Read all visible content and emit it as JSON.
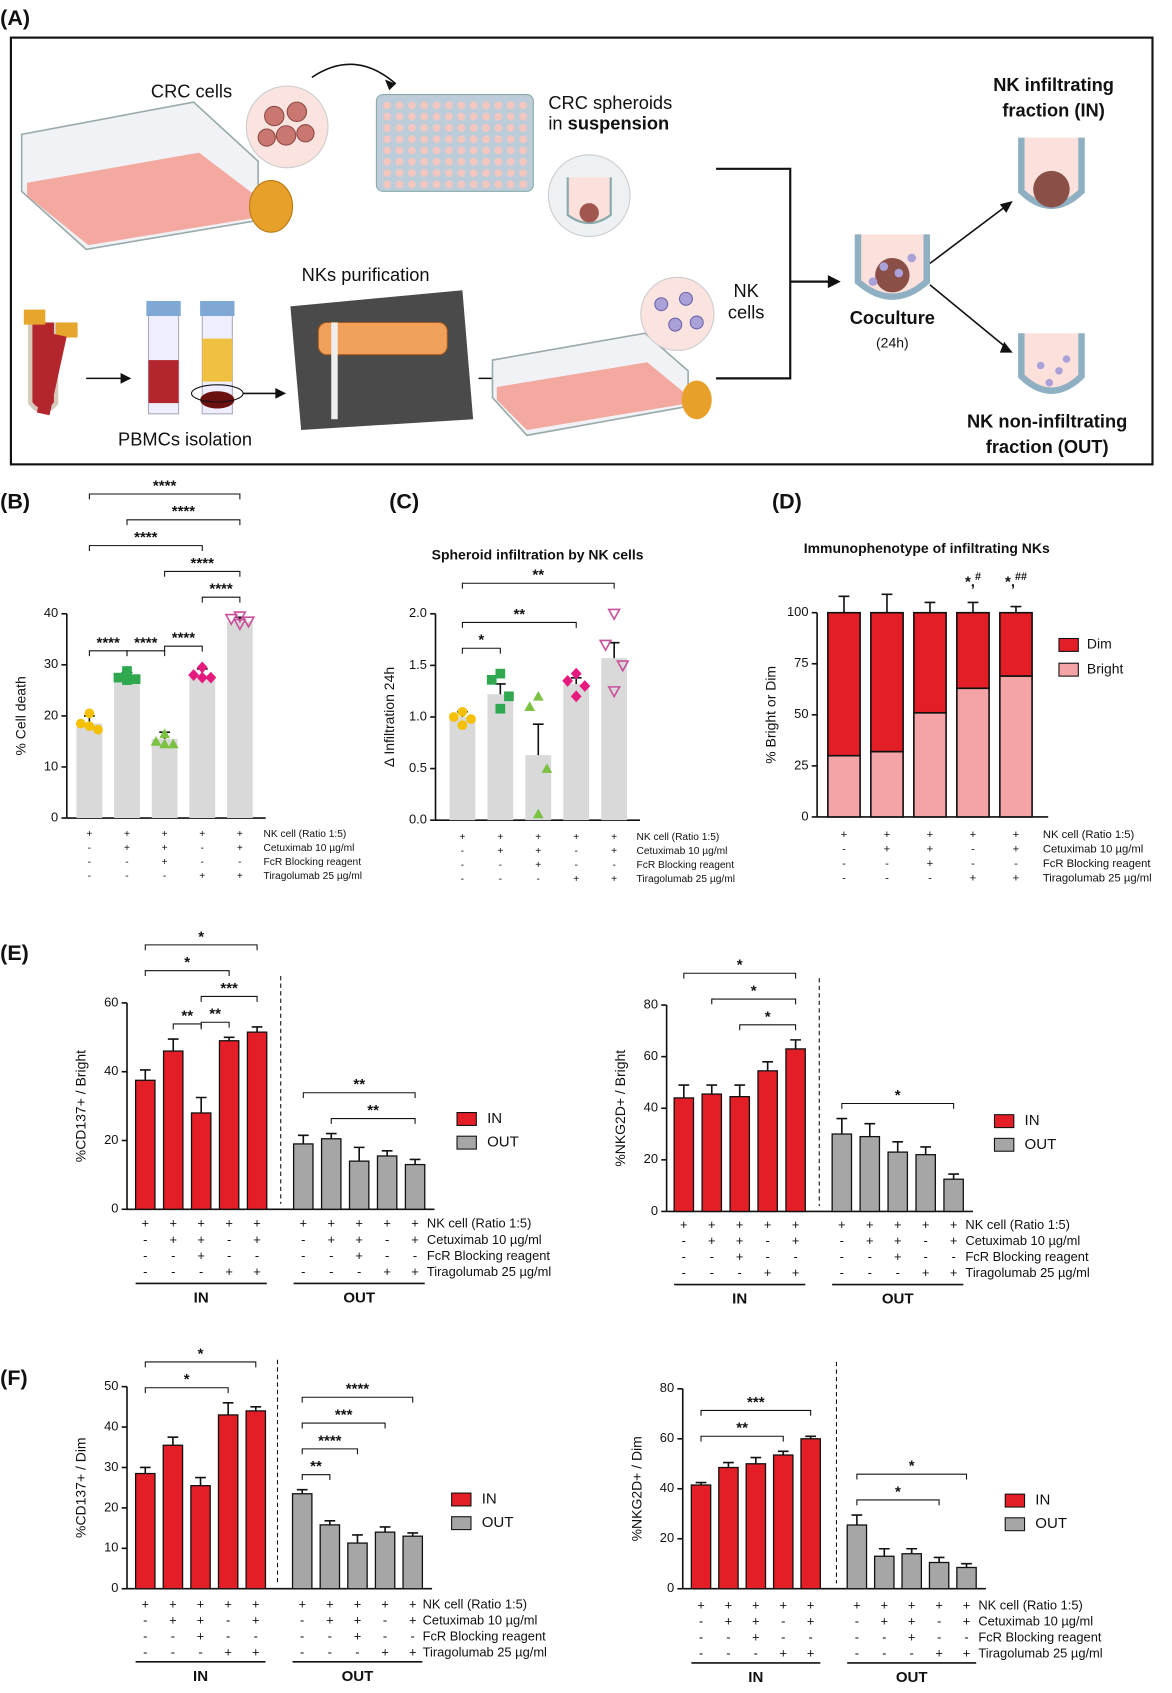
{
  "panel_labels": [
    "(A)",
    "(B)",
    "(C)",
    "(D)",
    "(E)",
    "(F)"
  ],
  "diagram": {
    "crc_cells": "CRC cells",
    "spheroids": "CRC spheroids",
    "in": "in ",
    "suspension": "suspension",
    "purification": "NKs purification",
    "nk": "NK",
    "cells": "cells",
    "pbmcs": "PBMCs isolation",
    "coculture": "Coculture",
    "time": "(24h)",
    "in_title_1": "NK infiltrating",
    "in_title_2": "fraction (IN)",
    "out_title_1": "NK non-infiltrating",
    "out_title_2": "fraction (OUT)"
  },
  "chart_data": [
    {
      "type": "bar",
      "ylabel": "% Cell death",
      "ylim": [
        0,
        40
      ],
      "yticks": [
        0,
        10,
        20,
        30,
        40
      ],
      "color": "#d9d9d9",
      "values": [
        18.5,
        27.5,
        15.5,
        28,
        38.5
      ],
      "errors": [
        1.5,
        1,
        1.3,
        1.2,
        0.8
      ],
      "points": [
        [
          20.5,
          18.5,
          17.3,
          18
        ],
        [
          28.8,
          27.5,
          27.2,
          27
        ],
        [
          16.5,
          15,
          14.5,
          14.5
        ],
        [
          29.5,
          28,
          27.5,
          27.5
        ],
        [
          39.5,
          39,
          38.5,
          38
        ]
      ],
      "point_colors": [
        "#f5c000",
        "#2fa84f",
        "#7cc242",
        "#e6197f",
        "#c8509a"
      ],
      "markers": [
        "circle",
        "square",
        "triangle",
        "diamond",
        "triangle-down-open"
      ],
      "conditions": [
        {
          "label": "NK cell (Ratio 1:5)",
          "signs": [
            "+",
            "+",
            "+",
            "+",
            "+"
          ]
        },
        {
          "label": "Cetuximab 10 µg/ml",
          "signs": [
            "-",
            "+",
            "+",
            "-",
            "+"
          ]
        },
        {
          "label": "FcR Blocking reagent",
          "signs": [
            "-",
            "-",
            "+",
            "-",
            "-"
          ]
        },
        {
          "label": "Tiragolumab 25 µg/ml",
          "signs": [
            "-",
            "-",
            "-",
            "+",
            "+"
          ]
        }
      ],
      "brackets": [
        {
          "from": 0,
          "to": 1,
          "label": "****"
        },
        {
          "from": 2,
          "to": 3,
          "label": "****"
        },
        {
          "from": 1,
          "to": 2,
          "label": "****"
        },
        {
          "from": 3,
          "to": 4,
          "label": "****"
        },
        {
          "from": 2,
          "to": 4,
          "label": "****"
        },
        {
          "from": 0,
          "to": 3,
          "label": "****"
        },
        {
          "from": 1,
          "to": 4,
          "label": "****"
        },
        {
          "from": 0,
          "to": 4,
          "label": "****"
        }
      ]
    },
    {
      "type": "bar",
      "title": "Spheroid infiltration by NK cells",
      "ylabel": "Δ Infiltration 24h",
      "ylim": [
        0,
        2
      ],
      "yticks": [
        {
          "value": 0,
          "label": "0.0"
        },
        {
          "value": 0.5,
          "label": "0.5"
        },
        {
          "value": 1,
          "label": "1.0"
        },
        {
          "value": 1.5,
          "label": "1.5"
        },
        {
          "value": 2,
          "label": "2.0"
        }
      ],
      "color": "#d9d9d9",
      "values": [
        1.0,
        1.22,
        0.63,
        1.32,
        1.57
      ],
      "errors": [
        0.05,
        0.1,
        0.3,
        0.06,
        0.15
      ],
      "points": [
        [
          1.05,
          1.0,
          0.98,
          0.92
        ],
        [
          1.42,
          1.36,
          1.2,
          1.08
        ],
        [
          1.2,
          1.1,
          0.5,
          0.06
        ],
        [
          1.42,
          1.35,
          1.3,
          1.2
        ],
        [
          2.0,
          1.7,
          1.5,
          1.25
        ]
      ],
      "point_colors": [
        "#f5c000",
        "#2fa84f",
        "#7cc242",
        "#e6197f",
        "#c8509a"
      ],
      "markers": [
        "circle",
        "square",
        "triangle",
        "diamond",
        "triangle-down-open"
      ],
      "conditions": [
        {
          "label": "NK cell (Ratio 1:5)",
          "signs": [
            "+",
            "+",
            "+",
            "+",
            "+"
          ]
        },
        {
          "label": "Cetuximab 10 µg/ml",
          "signs": [
            "-",
            "+",
            "+",
            "-",
            "+"
          ]
        },
        {
          "label": "FcR Blocking reagent",
          "signs": [
            "-",
            "-",
            "+",
            "-",
            "-"
          ]
        },
        {
          "label": "Tiragolumab 25 µg/ml",
          "signs": [
            "-",
            "-",
            "-",
            "+",
            "+"
          ]
        }
      ],
      "brackets": [
        {
          "from": 0,
          "to": 1,
          "label": "*"
        },
        {
          "from": 0,
          "to": 3,
          "label": "**"
        },
        {
          "from": 0,
          "to": 4,
          "label": "**"
        }
      ]
    },
    {
      "type": "stacked_bar",
      "title": "Immunophenotype of infiltrating NKs",
      "ylabel": "% Bright or Dim",
      "ylim": [
        0,
        100
      ],
      "yticks": [
        0,
        25,
        50,
        75,
        100
      ],
      "series": [
        {
          "name": "Bright",
          "color": "#f4a3a6",
          "values": [
            30,
            32,
            51,
            63,
            69
          ],
          "errors": [
            8,
            10,
            5,
            5,
            2
          ]
        },
        {
          "name": "Dim",
          "color": "#e41e26",
          "values": [
            70,
            68,
            49,
            37,
            31
          ],
          "errors": [
            8,
            9,
            5,
            5,
            3
          ]
        }
      ],
      "annotations": [
        {
          "index": 3,
          "text": "*,",
          "sup": "#"
        },
        {
          "index": 4,
          "text": "*,",
          "sup": "##"
        }
      ],
      "conditions": [
        {
          "label": "NK cell (Ratio 1:5)",
          "signs": [
            "+",
            "+",
            "+",
            "+",
            "+"
          ]
        },
        {
          "label": "Cetuximab 10 µg/ml",
          "signs": [
            "-",
            "+",
            "+",
            "-",
            "+"
          ]
        },
        {
          "label": "FcR Blocking reagent",
          "signs": [
            "-",
            "-",
            "+",
            "-",
            "-"
          ]
        },
        {
          "label": "Tiragolumab 25 µg/ml",
          "signs": [
            "-",
            "-",
            "-",
            "+",
            "+"
          ]
        }
      ]
    },
    {
      "type": "grouped_bar",
      "ylabel": "%CD137+ / Bright",
      "ylim": [
        0,
        60
      ],
      "yticks": [
        0,
        20,
        40,
        60
      ],
      "series": [
        {
          "name": "IN",
          "color": "#e41e26",
          "values": [
            37.5,
            46,
            28,
            49,
            51.5
          ],
          "errors": [
            3,
            3.5,
            4.5,
            1,
            1.5
          ]
        },
        {
          "name": "OUT",
          "color": "#a6a6a6",
          "values": [
            19,
            20.5,
            14,
            15.5,
            13
          ],
          "errors": [
            2.5,
            1.5,
            4,
            1.5,
            1.5
          ]
        }
      ],
      "conditions": [
        {
          "label": "NK cell (Ratio 1:5)",
          "signs": [
            "+",
            "+",
            "+",
            "+",
            "+"
          ]
        },
        {
          "label": "Cetuximab 10 µg/ml",
          "signs": [
            "-",
            "+",
            "+",
            "-",
            "+"
          ]
        },
        {
          "label": "FcR Blocking reagent",
          "signs": [
            "-",
            "-",
            "+",
            "-",
            "-"
          ]
        },
        {
          "label": "Tiragolumab 25 µg/ml",
          "signs": [
            "-",
            "-",
            "-",
            "+",
            "+"
          ]
        }
      ],
      "brackets": [
        {
          "series": 0,
          "from": 1,
          "to": 2,
          "label": "**"
        },
        {
          "series": 0,
          "from": 2,
          "to": 3,
          "label": "**"
        },
        {
          "series": 0,
          "from": 2,
          "to": 4,
          "label": "***"
        },
        {
          "series": 0,
          "from": 0,
          "to": 3,
          "label": "*"
        },
        {
          "series": 0,
          "from": 0,
          "to": 4,
          "label": "*"
        },
        {
          "series": 1,
          "from": 1,
          "to": 4,
          "label": "**"
        },
        {
          "series": 1,
          "from": 0,
          "to": 4,
          "label": "**"
        }
      ]
    },
    {
      "type": "grouped_bar",
      "ylabel": "%NKG2D+ / Bright",
      "ylim": [
        0,
        80
      ],
      "yticks": [
        0,
        20,
        40,
        60,
        80
      ],
      "series": [
        {
          "name": "IN",
          "color": "#e41e26",
          "values": [
            44,
            45.5,
            44.5,
            54.5,
            63
          ],
          "errors": [
            5,
            3.5,
            4.5,
            3.5,
            3.5
          ]
        },
        {
          "name": "OUT",
          "color": "#a6a6a6",
          "values": [
            30,
            29,
            23,
            22,
            12.5
          ],
          "errors": [
            6,
            5,
            4,
            3,
            2
          ]
        }
      ],
      "conditions": [
        {
          "label": "NK cell (Ratio 1:5)",
          "signs": [
            "+",
            "+",
            "+",
            "+",
            "+"
          ]
        },
        {
          "label": "Cetuximab 10 µg/ml",
          "signs": [
            "-",
            "+",
            "+",
            "-",
            "+"
          ]
        },
        {
          "label": "FcR Blocking reagent",
          "signs": [
            "-",
            "-",
            "+",
            "-",
            "-"
          ]
        },
        {
          "label": "Tiragolumab 25 µg/ml",
          "signs": [
            "-",
            "-",
            "-",
            "+",
            "+"
          ]
        }
      ],
      "brackets": [
        {
          "series": 0,
          "from": 2,
          "to": 4,
          "label": "*"
        },
        {
          "series": 0,
          "from": 1,
          "to": 4,
          "label": "*"
        },
        {
          "series": 0,
          "from": 0,
          "to": 4,
          "label": "*"
        },
        {
          "series": 1,
          "from": 0,
          "to": 4,
          "label": "*"
        }
      ]
    },
    {
      "type": "grouped_bar",
      "ylabel": "%CD137+ / Dim",
      "ylim": [
        0,
        50
      ],
      "yticks": [
        0,
        10,
        20,
        30,
        40,
        50
      ],
      "series": [
        {
          "name": "IN",
          "color": "#e41e26",
          "values": [
            28.5,
            35.5,
            25.5,
            43,
            44
          ],
          "errors": [
            1.5,
            2,
            2,
            3,
            1
          ]
        },
        {
          "name": "OUT",
          "color": "#a6a6a6",
          "values": [
            23.5,
            15.8,
            11.3,
            14,
            13
          ],
          "errors": [
            1,
            1,
            2,
            1.3,
            0.8
          ]
        }
      ],
      "conditions": [
        {
          "label": "NK cell (Ratio 1:5)",
          "signs": [
            "+",
            "+",
            "+",
            "+",
            "+"
          ]
        },
        {
          "label": "Cetuximab 10 µg/ml",
          "signs": [
            "-",
            "+",
            "+",
            "-",
            "+"
          ]
        },
        {
          "label": "FcR Blocking reagent",
          "signs": [
            "-",
            "-",
            "+",
            "-",
            "-"
          ]
        },
        {
          "label": "Tiragolumab 25 µg/ml",
          "signs": [
            "-",
            "-",
            "-",
            "+",
            "+"
          ]
        }
      ],
      "brackets": [
        {
          "series": 0,
          "from": 0,
          "to": 3,
          "label": "*"
        },
        {
          "series": 0,
          "from": 0,
          "to": 4,
          "label": "*"
        },
        {
          "series": 1,
          "from": 0,
          "to": 1,
          "label": "**"
        },
        {
          "series": 1,
          "from": 0,
          "to": 2,
          "label": "****"
        },
        {
          "series": 1,
          "from": 0,
          "to": 3,
          "label": "***"
        },
        {
          "series": 1,
          "from": 0,
          "to": 4,
          "label": "****"
        }
      ]
    },
    {
      "type": "grouped_bar",
      "ylabel": "%NKG2D+ / Dim",
      "ylim": [
        0,
        80
      ],
      "yticks": [
        0,
        20,
        40,
        60,
        80
      ],
      "series": [
        {
          "name": "IN",
          "color": "#e41e26",
          "values": [
            41.5,
            48.5,
            50,
            53.5,
            60
          ],
          "errors": [
            1,
            2,
            2.5,
            1.5,
            1
          ]
        },
        {
          "name": "OUT",
          "color": "#a6a6a6",
          "values": [
            25.5,
            13,
            14,
            10.5,
            8.5
          ],
          "errors": [
            4,
            3,
            2,
            2,
            1.5
          ]
        }
      ],
      "conditions": [
        {
          "label": "NK cell (Ratio 1:5)",
          "signs": [
            "+",
            "+",
            "+",
            "+",
            "+"
          ]
        },
        {
          "label": "Cetuximab 10 µg/ml",
          "signs": [
            "-",
            "+",
            "+",
            "-",
            "+"
          ]
        },
        {
          "label": "FcR Blocking reagent",
          "signs": [
            "-",
            "-",
            "+",
            "-",
            "-"
          ]
        },
        {
          "label": "Tiragolumab 25 µg/ml",
          "signs": [
            "-",
            "-",
            "-",
            "+",
            "+"
          ]
        }
      ],
      "brackets": [
        {
          "series": 0,
          "from": 0,
          "to": 3,
          "label": "**"
        },
        {
          "series": 0,
          "from": 0,
          "to": 4,
          "label": "***"
        },
        {
          "series": 1,
          "from": 0,
          "to": 3,
          "label": "*"
        },
        {
          "series": 1,
          "from": 0,
          "to": 4,
          "label": "*"
        }
      ]
    }
  ]
}
